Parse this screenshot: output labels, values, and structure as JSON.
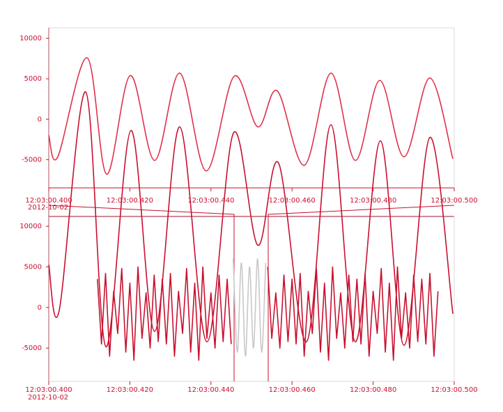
{
  "chart_data": [
    {
      "type": "line",
      "xlim": [
        0.4,
        0.5
      ],
      "xticks": [
        {
          "value": 0.4,
          "label": "12:03:00.400"
        },
        {
          "value": 0.42,
          "label": "12:03:00.420"
        },
        {
          "value": 0.44,
          "label": "12:03:00.440"
        },
        {
          "value": 0.46,
          "label": "12:03:00.460"
        },
        {
          "value": 0.48,
          "label": "12:03:00.480"
        },
        {
          "value": 0.5,
          "label": "12:03:00.500"
        }
      ],
      "x_date": "2012-10-02",
      "ylim": [
        -8500,
        11300
      ],
      "yticks": [
        10000,
        5000,
        0,
        -5000
      ],
      "series": [
        {
          "color": "#e0304a",
          "x": [
            0.4,
            0.40223,
            0.40945,
            0.41426,
            0.4201,
            0.42612,
            0.4323,
            0.43883,
            0.4457,
            0.45155,
            0.45636,
            0.46306,
            0.46959,
            0.4756,
            0.48162,
            0.48763,
            0.49399,
            0.49966
          ],
          "values": [
            -2000,
            -4650,
            7600,
            -6800,
            5400,
            -5100,
            5700,
            -6400,
            5300,
            -950,
            3500,
            -5700,
            5700,
            -5100,
            4800,
            -4650,
            5100,
            -4900
          ]
        }
      ]
    },
    {
      "type": "line",
      "xlim": [
        0.4,
        0.5
      ],
      "xticks": [
        {
          "value": 0.4,
          "label": "12:03:00.400"
        },
        {
          "value": 0.42,
          "label": "12:03:00.420"
        },
        {
          "value": 0.44,
          "label": "12:03:00.440"
        },
        {
          "value": 0.46,
          "label": "12:03:00.460"
        },
        {
          "value": 0.48,
          "label": "12:03:00.480"
        },
        {
          "value": 0.5,
          "label": "12:03:00.500"
        }
      ],
      "x_date": "2012-10-02",
      "ylim": [
        -9100,
        11300
      ],
      "yticks": [
        10000,
        5000,
        0,
        -5000
      ],
      "series": [
        {
          "color": "#c8102e",
          "x": [
            0.4,
            0.40258,
            0.40911,
            0.41409,
            0.42027,
            0.42612,
            0.4323,
            0.439,
            0.44553,
            0.45155,
            0.4567,
            0.46357,
            0.46959,
            0.4756,
            0.48179,
            0.48763,
            0.49399,
            0.49966
          ],
          "values": [
            5260,
            -345,
            26550,
            -4830,
            21800,
            -2930,
            22240,
            -4220,
            21470,
            7670,
            17760,
            -4220,
            22500,
            -4220,
            20520,
            -4650,
            20950,
            -780
          ]
        },
        {
          "color": "#c8102e",
          "x": [
            0.412,
            0.413,
            0.414,
            0.415,
            0.416,
            0.417,
            0.418,
            0.419,
            0.42,
            0.421,
            0.422,
            0.423,
            0.424,
            0.425,
            0.426,
            0.427,
            0.428,
            0.429,
            0.43,
            0.431,
            0.432,
            0.433,
            0.434,
            0.435,
            0.436,
            0.437,
            0.438,
            0.439,
            0.44,
            0.441,
            0.442,
            0.443,
            0.444,
            0.445,
            0.446,
            0.447,
            0.448,
            0.449,
            0.45,
            0.451,
            0.452,
            0.453,
            0.454,
            0.455,
            0.456,
            0.457,
            0.458,
            0.459,
            0.46,
            0.461,
            0.462,
            0.463,
            0.464,
            0.465,
            0.466,
            0.467,
            0.468,
            0.469,
            0.47,
            0.471,
            0.472,
            0.473,
            0.474,
            0.475,
            0.476,
            0.477,
            0.478,
            0.479,
            0.48,
            0.481,
            0.482,
            0.483,
            0.484,
            0.485,
            0.486,
            0.487,
            0.488,
            0.489,
            0.49,
            0.491,
            0.492,
            0.493,
            0.494,
            0.495,
            0.496
          ],
          "values": [
            3500,
            -4500,
            4200,
            -6000,
            2000,
            -3200,
            4800,
            -5500,
            3000,
            -6500,
            5000,
            -3800,
            1800,
            -5000,
            4000,
            -4200,
            3500,
            -4500,
            4200,
            -6000,
            2000,
            -3200,
            4800,
            -5500,
            3000,
            -6500,
            5000,
            -3800,
            1800,
            -5000,
            4000,
            -4200,
            3500,
            -4500,
            null,
            null,
            null,
            null,
            null,
            null,
            null,
            null,
            5000,
            -3800,
            1800,
            -5000,
            4000,
            -4200,
            3500,
            -4500,
            4200,
            -6000,
            2000,
            -3200,
            4800,
            -5500,
            3000,
            -6500,
            5000,
            -3800,
            1800,
            -5000,
            4000,
            -4200,
            3500,
            -4500,
            4200,
            -6000,
            2000,
            -3200,
            4800,
            -5500,
            3000,
            -6500,
            5000,
            -3800,
            1800,
            -5000,
            4000,
            -4200,
            3500,
            -4500,
            4200,
            -6000,
            2000
          ]
        },
        {
          "color": "#c8c8c8",
          "x": [
            0.4455,
            0.4465,
            0.4475,
            0.4485,
            0.4495,
            0.4505,
            0.4515,
            0.4525,
            0.4535
          ],
          "values": [
            6000,
            -5500,
            5500,
            -6000,
            5000,
            -5000,
            6000,
            -5500,
            5500
          ]
        }
      ]
    }
  ]
}
